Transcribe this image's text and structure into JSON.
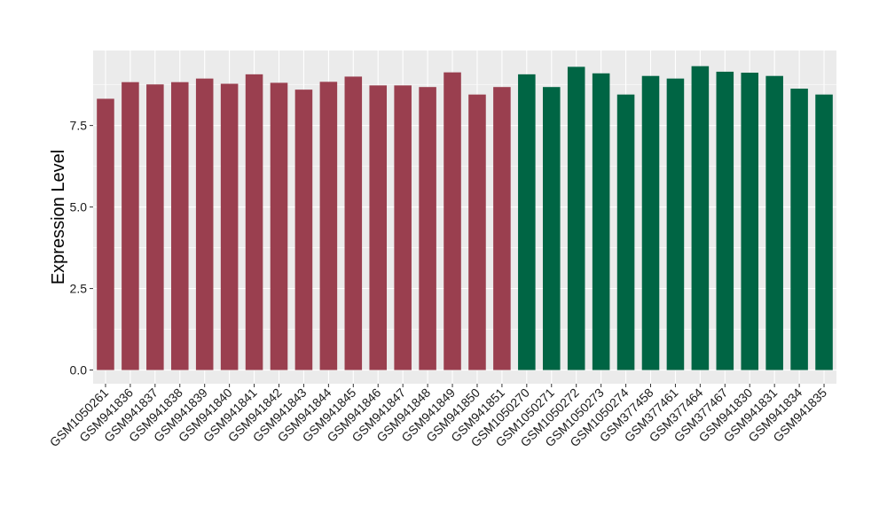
{
  "chart_data": {
    "type": "bar",
    "title": "",
    "xlabel": "",
    "ylabel": "Expression Level",
    "ylim": [
      -0.42,
      9.8
    ],
    "yticks": [
      "0.0",
      "2.5",
      "5.0",
      "7.5"
    ],
    "grid": true,
    "legend": "none",
    "panel_color": "#ebebeb",
    "grid_color": "#ffffff",
    "series": [
      {
        "color": "#9a3f4f",
        "categories": [
          "GSM1050261",
          "GSM941836",
          "GSM941837",
          "GSM941838",
          "GSM941839",
          "GSM941840",
          "GSM941841",
          "GSM941842",
          "GSM941843",
          "GSM941844",
          "GSM941845",
          "GSM941846",
          "GSM941847",
          "GSM941848",
          "GSM941849",
          "GSM941850",
          "GSM941851"
        ],
        "values": [
          8.32,
          8.83,
          8.76,
          8.83,
          8.94,
          8.78,
          9.07,
          8.81,
          8.6,
          8.84,
          9.0,
          8.73,
          8.73,
          8.68,
          9.13,
          8.45,
          8.68
        ]
      },
      {
        "color": "#006544",
        "categories": [
          "GSM1050270",
          "GSM1050271",
          "GSM1050272",
          "GSM1050273",
          "GSM1050274",
          "GSM377458",
          "GSM377461",
          "GSM377464",
          "GSM377467",
          "GSM941830",
          "GSM941831",
          "GSM941834",
          "GSM941835"
        ],
        "values": [
          9.07,
          8.68,
          9.3,
          9.1,
          8.45,
          9.02,
          8.94,
          9.32,
          9.15,
          9.12,
          9.02,
          8.63,
          8.45
        ]
      }
    ]
  }
}
